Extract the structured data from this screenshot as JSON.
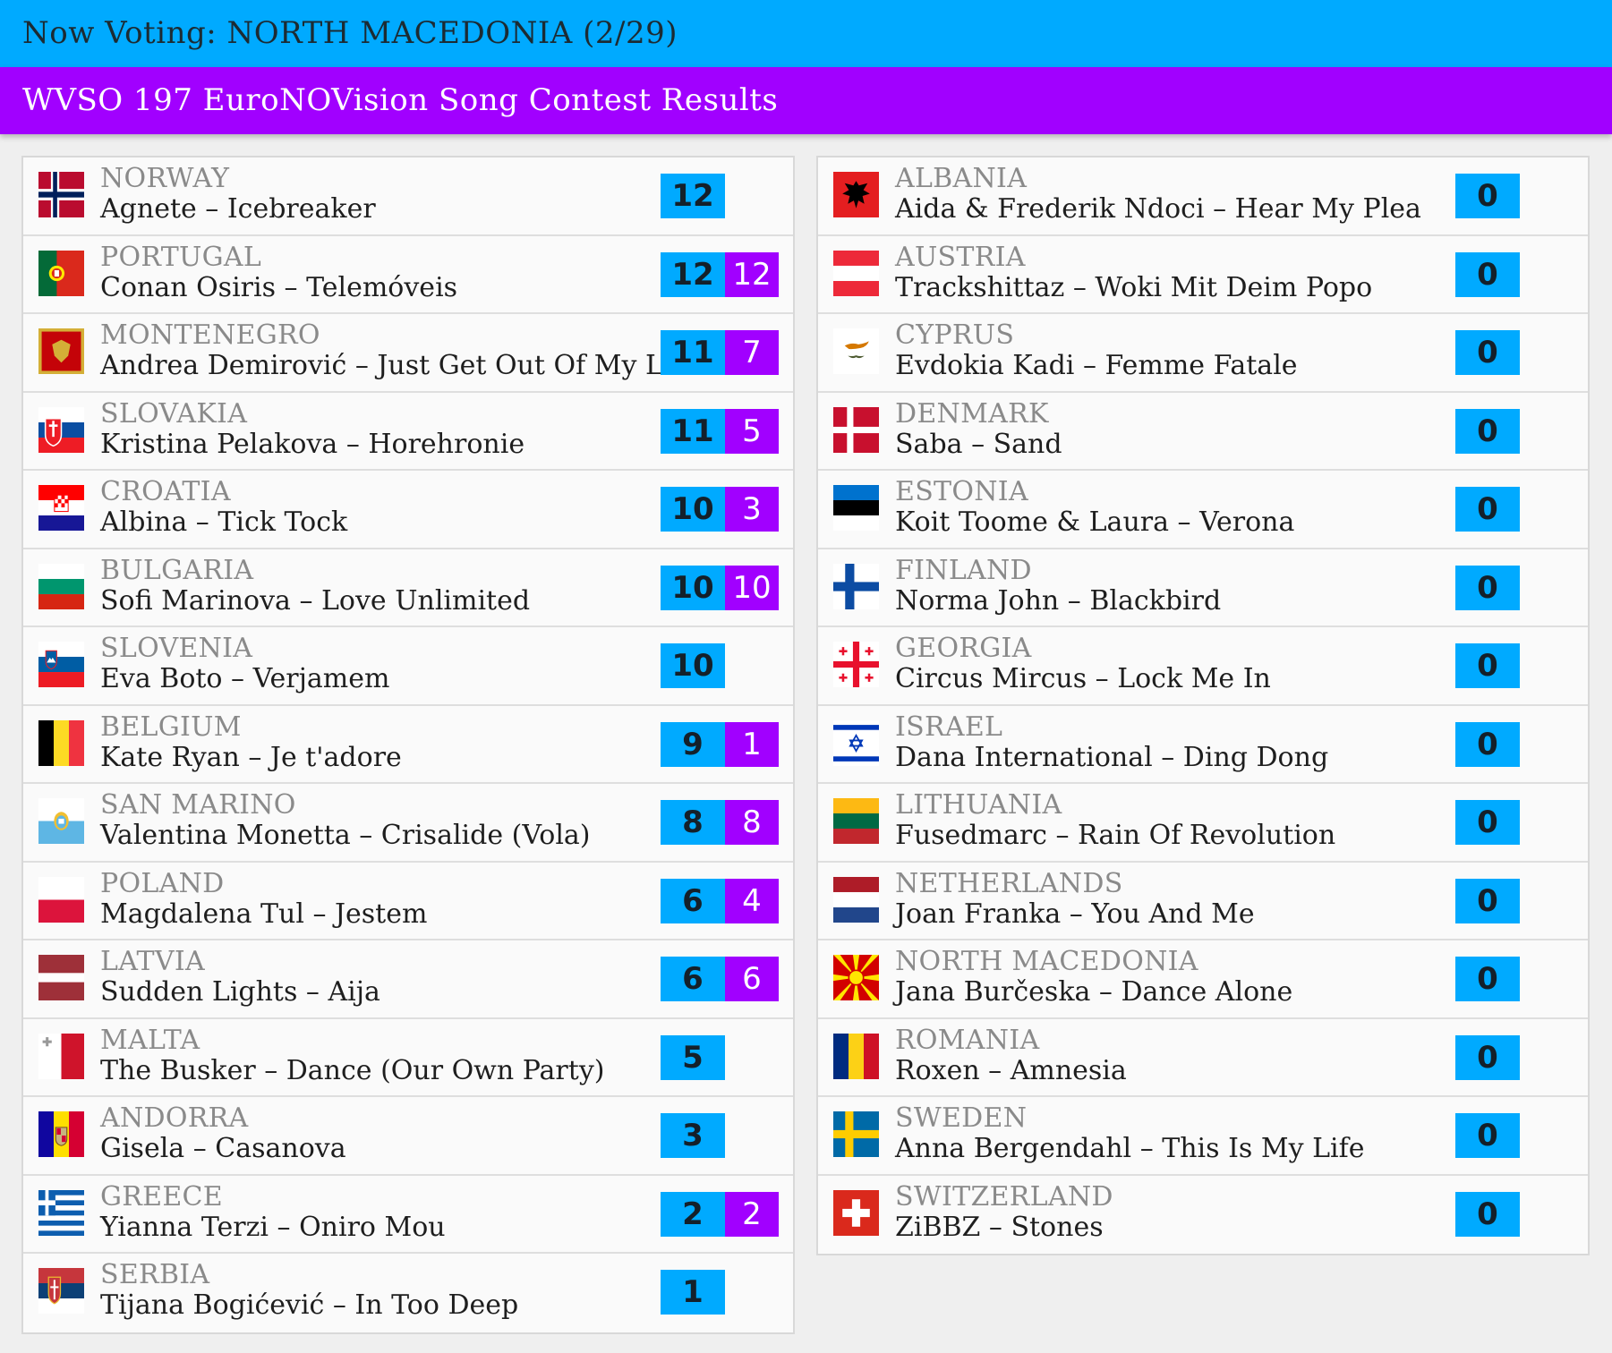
{
  "header": {
    "now_voting": "Now Voting: NORTH MACEDONIA (2/29)",
    "title": "WVSO 197 EuroNOVision Song Contest Results"
  },
  "colors": {
    "total_bg": "#00aaff",
    "points_bg": "#a100ff",
    "top_bar": "#00aaff",
    "title_bar": "#a100ff"
  },
  "left_column": [
    {
      "country": "NORWAY",
      "entry": "Agnete – Icebreaker",
      "total": "12",
      "points": null,
      "flag": "norway-flag-icon"
    },
    {
      "country": "PORTUGAL",
      "entry": "Conan Osiris – Telemóveis",
      "total": "12",
      "points": "12",
      "flag": "portugal-flag-icon"
    },
    {
      "country": "MONTENEGRO",
      "entry": "Andrea Demirović – Just Get Out Of My Life",
      "total": "11",
      "points": "7",
      "flag": "montenegro-flag-icon"
    },
    {
      "country": "SLOVAKIA",
      "entry": "Kristina Pelakova – Horehronie",
      "total": "11",
      "points": "5",
      "flag": "slovakia-flag-icon"
    },
    {
      "country": "CROATIA",
      "entry": "Albina – Tick Tock",
      "total": "10",
      "points": "3",
      "flag": "croatia-flag-icon"
    },
    {
      "country": "BULGARIA",
      "entry": "Sofi Marinova – Love Unlimited",
      "total": "10",
      "points": "10",
      "flag": "bulgaria-flag-icon"
    },
    {
      "country": "SLOVENIA",
      "entry": "Eva Boto – Verjamem",
      "total": "10",
      "points": null,
      "flag": "slovenia-flag-icon"
    },
    {
      "country": "BELGIUM",
      "entry": "Kate Ryan – Je t'adore",
      "total": "9",
      "points": "1",
      "flag": "belgium-flag-icon"
    },
    {
      "country": "SAN MARINO",
      "entry": "Valentina Monetta – Crisalide (Vola)",
      "total": "8",
      "points": "8",
      "flag": "san-marino-flag-icon"
    },
    {
      "country": "POLAND",
      "entry": "Magdalena Tul – Jestem",
      "total": "6",
      "points": "4",
      "flag": "poland-flag-icon"
    },
    {
      "country": "LATVIA",
      "entry": "Sudden Lights – Aija",
      "total": "6",
      "points": "6",
      "flag": "latvia-flag-icon"
    },
    {
      "country": "MALTA",
      "entry": "The Busker – Dance (Our Own Party)",
      "total": "5",
      "points": null,
      "flag": "malta-flag-icon"
    },
    {
      "country": "ANDORRA",
      "entry": "Gisela – Casanova",
      "total": "3",
      "points": null,
      "flag": "andorra-flag-icon"
    },
    {
      "country": "GREECE",
      "entry": "Yianna Terzi – Oniro Mou",
      "total": "2",
      "points": "2",
      "flag": "greece-flag-icon"
    },
    {
      "country": "SERBIA",
      "entry": "Tijana Bogićević – In Too Deep",
      "total": "1",
      "points": null,
      "flag": "serbia-flag-icon"
    }
  ],
  "right_column": [
    {
      "country": "ALBANIA",
      "entry": "Aida & Frederik Ndoci – Hear My Plea",
      "total": "0",
      "points": null,
      "flag": "albania-flag-icon"
    },
    {
      "country": "AUSTRIA",
      "entry": "Trackshittaz – Woki Mit Deim Popo",
      "total": "0",
      "points": null,
      "flag": "austria-flag-icon"
    },
    {
      "country": "CYPRUS",
      "entry": "Evdokia Kadi – Femme Fatale",
      "total": "0",
      "points": null,
      "flag": "cyprus-flag-icon"
    },
    {
      "country": "DENMARK",
      "entry": "Saba – Sand",
      "total": "0",
      "points": null,
      "flag": "denmark-flag-icon"
    },
    {
      "country": "ESTONIA",
      "entry": "Koit Toome & Laura – Verona",
      "total": "0",
      "points": null,
      "flag": "estonia-flag-icon"
    },
    {
      "country": "FINLAND",
      "entry": "Norma John – Blackbird",
      "total": "0",
      "points": null,
      "flag": "finland-flag-icon"
    },
    {
      "country": "GEORGIA",
      "entry": "Circus Mircus – Lock Me In",
      "total": "0",
      "points": null,
      "flag": "georgia-flag-icon"
    },
    {
      "country": "ISRAEL",
      "entry": "Dana International – Ding Dong",
      "total": "0",
      "points": null,
      "flag": "israel-flag-icon"
    },
    {
      "country": "LITHUANIA",
      "entry": "Fusedmarc – Rain Of Revolution",
      "total": "0",
      "points": null,
      "flag": "lithuania-flag-icon"
    },
    {
      "country": "NETHERLANDS",
      "entry": "Joan Franka – You And Me",
      "total": "0",
      "points": null,
      "flag": "netherlands-flag-icon"
    },
    {
      "country": "NORTH MACEDONIA",
      "entry": "Jana Burčeska – Dance Alone",
      "total": "0",
      "points": null,
      "flag": "north-macedonia-flag-icon"
    },
    {
      "country": "ROMANIA",
      "entry": "Roxen – Amnesia",
      "total": "0",
      "points": null,
      "flag": "romania-flag-icon"
    },
    {
      "country": "SWEDEN",
      "entry": "Anna Bergendahl – This Is My Life",
      "total": "0",
      "points": null,
      "flag": "sweden-flag-icon"
    },
    {
      "country": "SWITZERLAND",
      "entry": "ZiBBZ – Stones",
      "total": "0",
      "points": null,
      "flag": "switzerland-flag-icon"
    }
  ]
}
